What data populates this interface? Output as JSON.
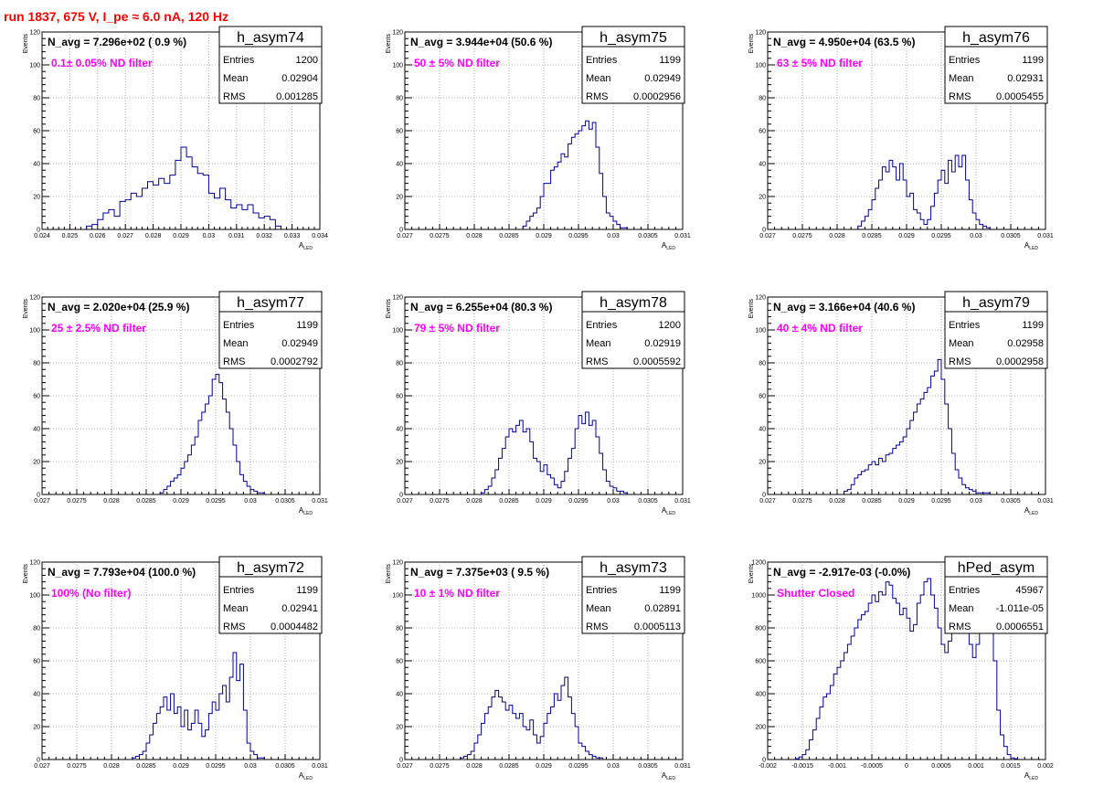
{
  "run_title": "run 1837,   675 V, I_pe ≈ 6.0 nA, 120 Hz",
  "ylabel": "Events",
  "xlabel_main": "A",
  "xlabel_sub": "LED",
  "stats_labels": {
    "entries": "Entries",
    "mean": "Mean",
    "rms": "RMS"
  },
  "chart_data": [
    {
      "type": "bar",
      "title": "h_asym74",
      "annotation": "N_avg = 7.296e+02 ( 0.9 %)",
      "subtitle": "0.1± 0.05% ND filter",
      "entries": "1200",
      "mean": "0.02904",
      "rms": "0.001285",
      "xlim": [
        0.024,
        0.034
      ],
      "ylim": [
        0,
        120
      ],
      "xticks": [
        "0.024",
        "0.025",
        "0.026",
        "0.027",
        "0.028",
        "0.029",
        "0.03",
        "0.031",
        "0.032",
        "0.033",
        "0.034"
      ],
      "yticks": [
        "0",
        "20",
        "40",
        "60",
        "80",
        "100",
        "120"
      ],
      "hist_x": [
        0.0256,
        0.0258,
        0.026,
        0.0262,
        0.0264,
        0.0266,
        0.0268,
        0.027,
        0.0272,
        0.0274,
        0.0276,
        0.0278,
        0.028,
        0.0282,
        0.0284,
        0.0286,
        0.0288,
        0.029,
        0.0292,
        0.0294,
        0.0296,
        0.0298,
        0.03,
        0.0302,
        0.0304,
        0.0306,
        0.0308,
        0.031,
        0.0312,
        0.0314,
        0.0316,
        0.0318,
        0.032,
        0.0322,
        0.0324
      ],
      "hist_y": [
        2,
        3,
        6,
        10,
        12,
        8,
        17,
        18,
        22,
        20,
        25,
        29,
        27,
        31,
        28,
        33,
        42,
        50,
        44,
        38,
        34,
        33,
        22,
        19,
        25,
        18,
        13,
        15,
        12,
        15,
        10,
        7,
        8,
        6,
        2
      ]
    },
    {
      "type": "bar",
      "title": "h_asym75",
      "annotation": "N_avg = 3.944e+04 (50.6 %)",
      "subtitle": "50 ± 5% ND filter",
      "entries": "1199",
      "mean": "0.02949",
      "rms": "0.0002956",
      "xlim": [
        0.027,
        0.031
      ],
      "ylim": [
        0,
        120
      ],
      "xticks": [
        "0.027",
        "0.0275",
        "0.028",
        "0.0285",
        "0.029",
        "0.0295",
        "0.03",
        "0.0305",
        "0.031"
      ],
      "yticks": [
        "0",
        "20",
        "40",
        "60",
        "80",
        "100",
        "120"
      ],
      "hist_x": [
        0.0287,
        0.02875,
        0.0288,
        0.02885,
        0.0289,
        0.02895,
        0.029,
        0.02905,
        0.0291,
        0.02915,
        0.0292,
        0.02925,
        0.0293,
        0.02935,
        0.0294,
        0.02945,
        0.0295,
        0.02955,
        0.0296,
        0.02965,
        0.0297,
        0.02975,
        0.0298,
        0.02985,
        0.0299,
        0.02995,
        0.03,
        0.03005,
        0.0301,
        0.03015
      ],
      "hist_y": [
        2,
        5,
        8,
        10,
        13,
        20,
        28,
        28,
        36,
        38,
        41,
        46,
        44,
        52,
        56,
        58,
        60,
        63,
        66,
        61,
        65,
        50,
        34,
        20,
        10,
        8,
        5,
        3,
        1,
        1
      ]
    },
    {
      "type": "bar",
      "title": "h_asym76",
      "annotation": "N_avg = 4.950e+04 (63.5 %)",
      "subtitle": "63 ± 5% ND filter",
      "entries": "1199",
      "mean": "0.02931",
      "rms": "0.0005455",
      "xlim": [
        0.027,
        0.031
      ],
      "ylim": [
        0,
        120
      ],
      "xticks": [
        "0.027",
        "0.0275",
        "0.028",
        "0.0285",
        "0.029",
        "0.0295",
        "0.03",
        "0.0305",
        "0.031"
      ],
      "yticks": [
        "0",
        "20",
        "40",
        "60",
        "80",
        "100",
        "120"
      ],
      "hist_x": [
        0.0283,
        0.02835,
        0.0284,
        0.02845,
        0.0285,
        0.02855,
        0.0286,
        0.02865,
        0.0287,
        0.02875,
        0.0288,
        0.02885,
        0.0289,
        0.02895,
        0.029,
        0.02905,
        0.0291,
        0.02915,
        0.0292,
        0.02925,
        0.0293,
        0.02935,
        0.0294,
        0.02945,
        0.0295,
        0.02955,
        0.0296,
        0.02965,
        0.0297,
        0.02975,
        0.0298,
        0.02985,
        0.0299,
        0.02995,
        0.03,
        0.03005,
        0.0301,
        0.03015
      ],
      "hist_y": [
        2,
        5,
        8,
        12,
        18,
        25,
        30,
        38,
        35,
        42,
        38,
        30,
        40,
        30,
        20,
        22,
        12,
        10,
        6,
        3,
        6,
        14,
        22,
        30,
        36,
        28,
        42,
        35,
        45,
        38,
        45,
        30,
        18,
        10,
        6,
        3,
        2,
        1
      ]
    },
    {
      "type": "bar",
      "title": "h_asym77",
      "annotation": "N_avg = 2.020e+04 (25.9 %)",
      "subtitle": "25 ± 2.5% ND filter",
      "entries": "1199",
      "mean": "0.02949",
      "rms": "0.0002792",
      "xlim": [
        0.027,
        0.031
      ],
      "ylim": [
        0,
        120
      ],
      "xticks": [
        "0.027",
        "0.0275",
        "0.028",
        "0.0285",
        "0.029",
        "0.0295",
        "0.03",
        "0.0305",
        "0.031"
      ],
      "yticks": [
        "0",
        "20",
        "40",
        "60",
        "80",
        "100",
        "120"
      ],
      "hist_x": [
        0.0287,
        0.02875,
        0.0288,
        0.02885,
        0.0289,
        0.02895,
        0.029,
        0.02905,
        0.0291,
        0.02915,
        0.0292,
        0.02925,
        0.0293,
        0.02935,
        0.0294,
        0.02945,
        0.0295,
        0.02955,
        0.0296,
        0.02965,
        0.0297,
        0.02975,
        0.0298,
        0.02985,
        0.0299,
        0.02995,
        0.03,
        0.03005,
        0.0301,
        0.03015
      ],
      "hist_y": [
        1,
        3,
        5,
        8,
        10,
        12,
        16,
        20,
        24,
        30,
        35,
        45,
        50,
        55,
        60,
        70,
        73,
        68,
        58,
        50,
        40,
        30,
        20,
        12,
        8,
        5,
        3,
        2,
        1,
        1
      ]
    },
    {
      "type": "bar",
      "title": "h_asym78",
      "annotation": "N_avg = 6.255e+04 (80.3 %)",
      "subtitle": "79 ± 5% ND filter",
      "entries": "1200",
      "mean": "0.02919",
      "rms": "0.0005592",
      "xlim": [
        0.027,
        0.031
      ],
      "ylim": [
        0,
        120
      ],
      "xticks": [
        "0.027",
        "0.0275",
        "0.028",
        "0.0285",
        "0.029",
        "0.0295",
        "0.03",
        "0.0305",
        "0.031"
      ],
      "yticks": [
        "0",
        "20",
        "40",
        "60",
        "80",
        "100",
        "120"
      ],
      "hist_x": [
        0.0281,
        0.02815,
        0.0282,
        0.02825,
        0.0283,
        0.02835,
        0.0284,
        0.02845,
        0.0285,
        0.02855,
        0.0286,
        0.02865,
        0.0287,
        0.02875,
        0.0288,
        0.02885,
        0.0289,
        0.02895,
        0.029,
        0.02905,
        0.0291,
        0.02915,
        0.0292,
        0.02925,
        0.0293,
        0.02935,
        0.0294,
        0.02945,
        0.0295,
        0.02955,
        0.0296,
        0.02965,
        0.0297,
        0.02975,
        0.0298,
        0.02985,
        0.0299,
        0.02995,
        0.03,
        0.03005,
        0.0301,
        0.03015
      ],
      "hist_y": [
        1,
        3,
        5,
        10,
        15,
        22,
        28,
        35,
        40,
        38,
        42,
        45,
        38,
        40,
        32,
        22,
        20,
        14,
        18,
        12,
        10,
        6,
        4,
        8,
        14,
        22,
        28,
        40,
        48,
        43,
        50,
        42,
        45,
        35,
        25,
        15,
        8,
        5,
        4,
        2,
        2,
        1
      ]
    },
    {
      "type": "bar",
      "title": "h_asym79",
      "annotation": "N_avg = 3.166e+04 (40.6 %)",
      "subtitle": "40 ± 4% ND filter",
      "entries": "1199",
      "mean": "0.02958",
      "rms": "0.0002958",
      "xlim": [
        0.027,
        0.031
      ],
      "ylim": [
        0,
        120
      ],
      "xticks": [
        "0.027",
        "0.0275",
        "0.028",
        "0.0285",
        "0.029",
        "0.0295",
        "0.03",
        "0.0305",
        "0.031"
      ],
      "yticks": [
        "0",
        "20",
        "40",
        "60",
        "80",
        "100",
        "120"
      ],
      "hist_x": [
        0.0281,
        0.02815,
        0.0282,
        0.02825,
        0.0283,
        0.02835,
        0.0284,
        0.02845,
        0.0285,
        0.02855,
        0.0286,
        0.02865,
        0.0287,
        0.02875,
        0.0288,
        0.02885,
        0.0289,
        0.02895,
        0.029,
        0.02905,
        0.0291,
        0.02915,
        0.0292,
        0.02925,
        0.0293,
        0.02935,
        0.0294,
        0.02945,
        0.0295,
        0.02955,
        0.0296,
        0.02965,
        0.0297,
        0.02975,
        0.0298,
        0.02985,
        0.0299,
        0.02995,
        0.03,
        0.03005,
        0.0301,
        0.03015
      ],
      "hist_y": [
        2,
        3,
        6,
        10,
        12,
        14,
        15,
        18,
        20,
        18,
        22,
        20,
        24,
        25,
        28,
        30,
        32,
        35,
        40,
        45,
        50,
        55,
        58,
        62,
        65,
        72,
        75,
        82,
        70,
        55,
        40,
        25,
        15,
        10,
        6,
        4,
        3,
        2,
        1,
        1,
        1,
        1
      ]
    },
    {
      "type": "bar",
      "title": "h_asym72",
      "annotation": "N_avg = 7.793e+04 (100.0 %)",
      "subtitle": "100% (No filter)",
      "entries": "1199",
      "mean": "0.02941",
      "rms": "0.0004482",
      "xlim": [
        0.027,
        0.031
      ],
      "ylim": [
        0,
        120
      ],
      "xticks": [
        "0.027",
        "0.0275",
        "0.028",
        "0.0285",
        "0.029",
        "0.0295",
        "0.03",
        "0.0305",
        "0.031"
      ],
      "yticks": [
        "0",
        "20",
        "40",
        "60",
        "80",
        "100",
        "120"
      ],
      "hist_x": [
        0.0283,
        0.02835,
        0.0284,
        0.02845,
        0.0285,
        0.02855,
        0.0286,
        0.02865,
        0.0287,
        0.02875,
        0.0288,
        0.02885,
        0.0289,
        0.02895,
        0.029,
        0.02905,
        0.0291,
        0.02915,
        0.0292,
        0.02925,
        0.0293,
        0.02935,
        0.0294,
        0.02945,
        0.0295,
        0.02955,
        0.0296,
        0.02965,
        0.0297,
        0.02975,
        0.0298,
        0.02985,
        0.0299,
        0.02995,
        0.03,
        0.03005,
        0.0301,
        0.03015
      ],
      "hist_y": [
        1,
        2,
        3,
        5,
        10,
        15,
        22,
        28,
        32,
        38,
        30,
        40,
        28,
        32,
        20,
        30,
        18,
        22,
        30,
        22,
        14,
        18,
        28,
        35,
        30,
        40,
        45,
        35,
        50,
        65,
        48,
        58,
        30,
        10,
        5,
        3,
        1,
        1
      ]
    },
    {
      "type": "bar",
      "title": "h_asym73",
      "annotation": "N_avg = 7.375e+03 ( 9.5 %)",
      "subtitle": "10 ± 1% ND filter",
      "entries": "1199",
      "mean": "0.02891",
      "rms": "0.0005113",
      "xlim": [
        0.027,
        0.031
      ],
      "ylim": [
        0,
        120
      ],
      "xticks": [
        "0.027",
        "0.0275",
        "0.028",
        "0.0285",
        "0.029",
        "0.0295",
        "0.03",
        "0.0305",
        "0.031"
      ],
      "yticks": [
        "0",
        "20",
        "40",
        "60",
        "80",
        "100",
        "120"
      ],
      "hist_x": [
        0.0278,
        0.02785,
        0.0279,
        0.02795,
        0.028,
        0.02805,
        0.0281,
        0.02815,
        0.0282,
        0.02825,
        0.0283,
        0.02835,
        0.0284,
        0.02845,
        0.0285,
        0.02855,
        0.0286,
        0.02865,
        0.0287,
        0.02875,
        0.0288,
        0.02885,
        0.0289,
        0.02895,
        0.029,
        0.02905,
        0.0291,
        0.02915,
        0.0292,
        0.02925,
        0.0293,
        0.02935,
        0.0294,
        0.02945,
        0.0295,
        0.02955,
        0.0296,
        0.02965,
        0.0297,
        0.02975,
        0.0298
      ],
      "hist_y": [
        1,
        2,
        3,
        5,
        10,
        15,
        22,
        28,
        32,
        38,
        42,
        38,
        35,
        30,
        33,
        28,
        25,
        28,
        20,
        18,
        24,
        15,
        10,
        14,
        22,
        28,
        32,
        40,
        36,
        45,
        50,
        38,
        28,
        20,
        10,
        8,
        5,
        3,
        2,
        1,
        1
      ]
    },
    {
      "type": "bar",
      "title": "hPed_asym",
      "annotation": "N_avg = -2.917e-03 (-0.0%)",
      "subtitle": "Shutter Closed",
      "entries": "45967",
      "mean": "-1.011e-05",
      "rms": "0.0006551",
      "xlim": [
        -0.002,
        0.002
      ],
      "ylim": [
        0,
        1200
      ],
      "xticks": [
        "-0.002",
        "-0.0015",
        "-0.001",
        "-0.0005",
        "0",
        "0.0005",
        "0.001",
        "0.0015",
        "0.002"
      ],
      "yticks": [
        "0",
        "200",
        "400",
        "600",
        "800",
        "1000",
        "1200"
      ],
      "hist_x": [
        -0.0016,
        -0.00155,
        -0.0015,
        -0.00145,
        -0.0014,
        -0.00135,
        -0.0013,
        -0.00125,
        -0.0012,
        -0.00115,
        -0.0011,
        -0.00105,
        -0.001,
        -0.00095,
        -0.0009,
        -0.00085,
        -0.0008,
        -0.00075,
        -0.0007,
        -0.00065,
        -0.0006,
        -0.00055,
        -0.0005,
        -0.00045,
        -0.0004,
        -0.00035,
        -0.0003,
        -0.00025,
        -0.0002,
        -0.00015,
        -0.0001,
        -5e-05,
        0.0,
        5e-05,
        0.0001,
        0.00015,
        0.0002,
        0.00025,
        0.0003,
        0.00035,
        0.0004,
        0.00045,
        0.0005,
        0.00055,
        0.0006,
        0.00065,
        0.0007,
        0.00075,
        0.0008,
        0.00085,
        0.0009,
        0.00095,
        0.001,
        0.00105,
        0.0011,
        0.00115,
        0.0012,
        0.00125,
        0.0013,
        0.00135,
        0.0014,
        0.00145,
        0.0015,
        0.00155
      ],
      "hist_y": [
        5,
        15,
        30,
        60,
        120,
        180,
        250,
        320,
        380,
        400,
        450,
        520,
        560,
        600,
        650,
        700,
        750,
        800,
        850,
        880,
        900,
        950,
        1000,
        960,
        1020,
        1000,
        1080,
        1060,
        980,
        950,
        880,
        920,
        860,
        780,
        820,
        950,
        1000,
        1080,
        1100,
        1000,
        920,
        800,
        700,
        650,
        720,
        850,
        1000,
        1020,
        1000,
        800,
        700,
        620,
        700,
        780,
        900,
        1000,
        860,
        600,
        300,
        150,
        80,
        30,
        10,
        5
      ]
    }
  ]
}
